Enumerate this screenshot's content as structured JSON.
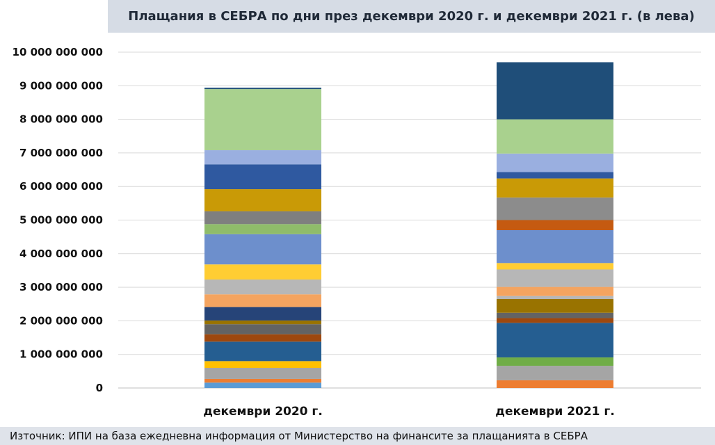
{
  "chart_data": {
    "type": "bar",
    "stacked": true,
    "title": "Плащания в СЕБРА по дни през декември 2020 г. и декември 2021 г. (в лева)",
    "source": "Източник: ИПИ на база ежедневна информация от Министерство на финансите за плащанията в СЕБРА",
    "categories": [
      "декември 2020 г.",
      "декември 2021 г."
    ],
    "ylim": [
      0,
      10000000000
    ],
    "yticks": [
      0,
      1000000000,
      2000000000,
      3000000000,
      4000000000,
      5000000000,
      6000000000,
      7000000000,
      8000000000,
      9000000000,
      10000000000
    ],
    "ytick_labels": [
      "0",
      "1 000 000 000",
      "2 000 000 000",
      "3 000 000 000",
      "4 000 000 000",
      "5 000 000 000",
      "6 000 000 000",
      "7 000 000 000",
      "8 000 000 000",
      "9 000 000 000",
      "10 000 000 000"
    ],
    "grid": true,
    "legend": "none",
    "stacks": [
      {
        "category": "декември 2020 г.",
        "segments": [
          {
            "value": 160000000,
            "color": "#5b9bd5"
          },
          {
            "value": 110000000,
            "color": "#ed7d31"
          },
          {
            "value": 330000000,
            "color": "#a5a5a5"
          },
          {
            "value": 200000000,
            "color": "#ffc000"
          },
          {
            "value": 580000000,
            "color": "#255e91"
          },
          {
            "value": 220000000,
            "color": "#9e480e"
          },
          {
            "value": 300000000,
            "color": "#636363"
          },
          {
            "value": 110000000,
            "color": "#997300"
          },
          {
            "value": 400000000,
            "color": "#264478"
          },
          {
            "value": 380000000,
            "color": "#f4a460"
          },
          {
            "value": 440000000,
            "color": "#b7b7b7"
          },
          {
            "value": 450000000,
            "color": "#ffcd33"
          },
          {
            "value": 900000000,
            "color": "#6d8fcc"
          },
          {
            "value": 300000000,
            "color": "#8fbc6a"
          },
          {
            "value": 380000000,
            "color": "#7f7f7f"
          },
          {
            "value": 660000000,
            "color": "#c99a06"
          },
          {
            "value": 740000000,
            "color": "#2f59a0"
          },
          {
            "value": 420000000,
            "color": "#9aafe0"
          },
          {
            "value": 1820000000,
            "color": "#a9d18e"
          },
          {
            "value": 40000000,
            "color": "#1f4e79"
          }
        ]
      },
      {
        "category": "декември 2021 г.",
        "segments": [
          {
            "value": 230000000,
            "color": "#ed7d31"
          },
          {
            "value": 430000000,
            "color": "#a5a5a5"
          },
          {
            "value": 250000000,
            "color": "#70ad47"
          },
          {
            "value": 1030000000,
            "color": "#255e91"
          },
          {
            "value": 140000000,
            "color": "#9e480e"
          },
          {
            "value": 160000000,
            "color": "#636363"
          },
          {
            "value": 410000000,
            "color": "#997300"
          },
          {
            "value": 90000000,
            "color": "#b7b7b7"
          },
          {
            "value": 270000000,
            "color": "#f4a460"
          },
          {
            "value": 520000000,
            "color": "#b7b7b7"
          },
          {
            "value": 190000000,
            "color": "#ffcd33"
          },
          {
            "value": 980000000,
            "color": "#6d8fcc"
          },
          {
            "value": 300000000,
            "color": "#c55a11"
          },
          {
            "value": 670000000,
            "color": "#8c8c8c"
          },
          {
            "value": 570000000,
            "color": "#c99a06"
          },
          {
            "value": 190000000,
            "color": "#2f59a0"
          },
          {
            "value": 550000000,
            "color": "#9aafe0"
          },
          {
            "value": 1020000000,
            "color": "#a9d18e"
          },
          {
            "value": 1700000000,
            "color": "#1f4e79"
          }
        ]
      }
    ]
  }
}
